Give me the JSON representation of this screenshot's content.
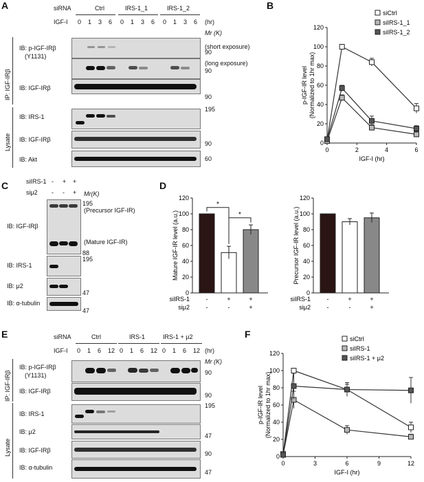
{
  "panels": {
    "A": "A",
    "B": "B",
    "C": "C",
    "D": "D",
    "E": "E",
    "F": "F"
  },
  "A": {
    "sirna_label": "siRNA",
    "groups": [
      "Ctrl",
      "IRS-1_1",
      "IRS-1_2"
    ],
    "igf_label": "IGF-I",
    "times": [
      "0",
      "1",
      "3",
      "6",
      "0",
      "1",
      "3",
      "6",
      "0",
      "1",
      "3",
      "6"
    ],
    "hr": "(hr)",
    "mr": "Mr (K)",
    "side_ip": "IP: IGF-IRβ",
    "side_lysate": "Lysate",
    "blots": [
      {
        "label": "IB: p-IGF-IRβ",
        "label2": "(Y1131)",
        "note": "(short exposure)",
        "mw": "90"
      },
      {
        "label": "",
        "label2": "",
        "note": "(long exposure)",
        "mw": "90"
      },
      {
        "label": "IB: IGF-IRβ",
        "label2": "",
        "note": "",
        "mw": "90"
      },
      {
        "label": "IB: IRS-1",
        "label2": "",
        "note": "",
        "mw": "195"
      },
      {
        "label": "IB: IGF-IRβ",
        "label2": "",
        "note": "",
        "mw": "90"
      },
      {
        "label": "IB: Akt",
        "label2": "",
        "note": "",
        "mw": "60"
      }
    ]
  },
  "C": {
    "row1_label": "siIRS-1",
    "row1": [
      "-",
      "+",
      "+"
    ],
    "row2_label": "siμ2",
    "row2": [
      "-",
      "-",
      "+"
    ],
    "mr": "Mr(K)",
    "blots": [
      {
        "label": "IB: IGF-IRβ",
        "mw_top": "195",
        "note_top": "(Precursor IGF-IR)",
        "note_mid": "(Mature IGF-IR)",
        "mw_bot": "88"
      },
      {
        "label": "IB: IRS-1",
        "mw": "195"
      },
      {
        "label": "IB: μ2",
        "mw": "47"
      },
      {
        "label": "IB: α-tubulin",
        "mw": "47"
      }
    ]
  },
  "E": {
    "sirna_label": "siRNA",
    "groups": [
      "Ctrl",
      "IRS-1",
      "IRS-1 + μ2"
    ],
    "igf_label": "IGF-I",
    "times": [
      "0",
      "1",
      "6",
      "12",
      "0",
      "1",
      "6",
      "12",
      "0",
      "1",
      "6",
      "12"
    ],
    "hr": "(hr)",
    "mr": "Mr (K)",
    "side_ip": "IP: IGF-IRβ",
    "side_lysate": "Lysate",
    "blots": [
      {
        "label": "IB: p-IGF-IRβ",
        "label2": "(Y1131)",
        "mw": "90"
      },
      {
        "label": "IB: IGF-IRβ",
        "label2": "",
        "mw": "90"
      },
      {
        "label": "IB: IRS-1",
        "label2": "",
        "mw": "195"
      },
      {
        "label": "IB: μ2",
        "label2": "",
        "mw": "47"
      },
      {
        "label": "IB: IGF-IRβ",
        "label2": "",
        "mw": "90"
      },
      {
        "label": "IB: α-tubulin",
        "label2": "",
        "mw": "47"
      }
    ]
  },
  "chart_data": [
    {
      "panel": "B",
      "type": "line",
      "ylabel": "p-IGF-IR level",
      "ylabel2": "(Normalized to 1hr max)",
      "xlabel": "IGF-I (hr)",
      "xlim": [
        0,
        6
      ],
      "ylim": [
        0,
        120
      ],
      "xticks": [
        0,
        2,
        4,
        6
      ],
      "yticks": [
        0,
        20,
        40,
        60,
        80,
        100,
        120
      ],
      "legend": "top-right",
      "series": [
        {
          "name": "siCtrl",
          "color": "#ffffff",
          "x": [
            0,
            1,
            3,
            6
          ],
          "y": [
            3,
            100,
            84,
            36
          ],
          "err": [
            2,
            2,
            4,
            5
          ]
        },
        {
          "name": "siIRS-1_1",
          "color": "#b8b8b8",
          "x": [
            0,
            1,
            3,
            6
          ],
          "y": [
            2,
            47,
            16,
            9
          ],
          "err": [
            2,
            3,
            3,
            3
          ]
        },
        {
          "name": "siIRS-1_2",
          "color": "#555555",
          "x": [
            0,
            1,
            3,
            6
          ],
          "y": [
            4,
            57,
            23,
            15
          ],
          "err": [
            2,
            3,
            5,
            3
          ]
        }
      ]
    },
    {
      "panel": "D-left",
      "type": "bar",
      "ylabel": "Mature IGF-IR level (a.u.)",
      "ylim": [
        0,
        120
      ],
      "yticks": [
        0,
        20,
        40,
        60,
        80,
        100,
        120
      ],
      "row1_label": "siIRS-1",
      "row1": [
        "-",
        "+",
        "+"
      ],
      "row2_label": "siμ2",
      "row2": [
        "-",
        "-",
        "+"
      ],
      "values": [
        100,
        51,
        80
      ],
      "err": [
        0,
        8,
        6
      ],
      "colors": [
        "#2a1414",
        "#ffffff",
        "#888888"
      ],
      "sig": [
        "*",
        "*"
      ]
    },
    {
      "panel": "D-right",
      "type": "bar",
      "ylabel": "Precursor IGF-IR level (a.u.)",
      "ylim": [
        0,
        120
      ],
      "yticks": [
        0,
        20,
        40,
        60,
        80,
        100,
        120
      ],
      "row1_label": "siIRS-1",
      "row1": [
        "-",
        "+",
        "+"
      ],
      "row2_label": "siμ2",
      "row2": [
        "-",
        "-",
        "+"
      ],
      "values": [
        100,
        90,
        95
      ],
      "err": [
        0,
        4,
        6
      ],
      "colors": [
        "#2a1414",
        "#ffffff",
        "#888888"
      ]
    },
    {
      "panel": "F",
      "type": "line",
      "ylabel": "p-IGF-IR level",
      "ylabel2": "(Normalized to 1hr max)",
      "xlabel": "IGF-I (hr)",
      "xlim": [
        0,
        12
      ],
      "ylim": [
        0,
        120
      ],
      "xticks": [
        0,
        3,
        6,
        9,
        12
      ],
      "yticks": [
        0,
        20,
        40,
        60,
        80,
        100,
        120
      ],
      "legend": "top-right",
      "series": [
        {
          "name": "siCtrl",
          "color": "#ffffff",
          "x": [
            0,
            1,
            6,
            12
          ],
          "y": [
            3,
            100,
            78,
            34
          ],
          "err": [
            2,
            2,
            6,
            6
          ]
        },
        {
          "name": "siIRS-1",
          "color": "#b8b8b8",
          "x": [
            0,
            1,
            6,
            12
          ],
          "y": [
            2,
            66,
            31,
            23
          ],
          "err": [
            2,
            10,
            5,
            3
          ]
        },
        {
          "name": "siIRS-1 + μ2",
          "color": "#555555",
          "x": [
            0,
            1,
            6,
            12
          ],
          "y": [
            2,
            82,
            78,
            77
          ],
          "err": [
            2,
            15,
            8,
            15
          ]
        }
      ]
    }
  ]
}
